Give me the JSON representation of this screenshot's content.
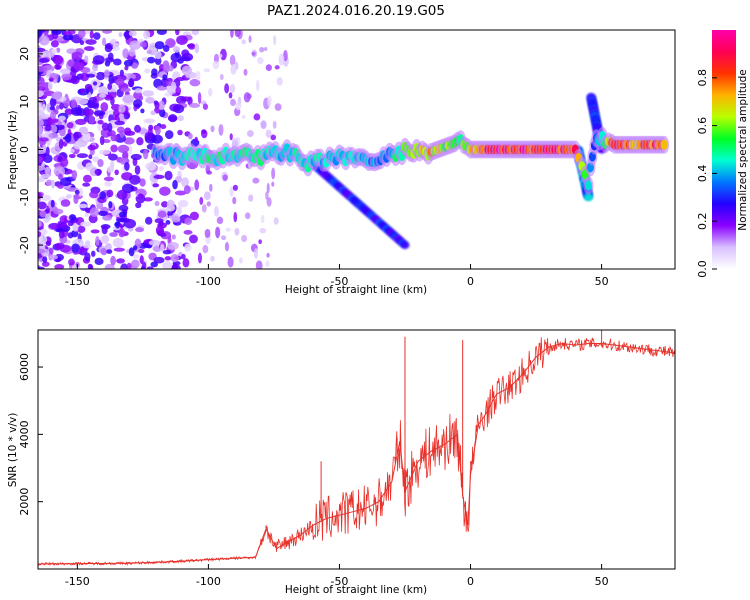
{
  "title": "PAZ1.2024.016.20.19.G05",
  "colors": {
    "snr_line": "#e8312a",
    "text": "#000000",
    "background": "#ffffff"
  },
  "chart_data": [
    {
      "type": "heatmap",
      "title": "PAZ1.2024.016.20.19.G05",
      "xlabel": "Height of straight line (km)",
      "ylabel": "Frequency (Hz)",
      "xlim": [
        -165,
        78
      ],
      "ylim": [
        -25,
        25
      ],
      "xticks": [
        -150,
        -100,
        -50,
        0,
        50
      ],
      "yticks": [
        -20,
        -10,
        0,
        10,
        20
      ],
      "colorbar": {
        "label": "Normalized spectral amplitude",
        "range": [
          0,
          1
        ],
        "ticks": [
          "0.0",
          "0.2",
          "0.4",
          "0.6",
          "0.8"
        ],
        "colormap": "gist_rainbow",
        "stops": [
          "#ffffff",
          "#d9c0ff",
          "#8a00ff",
          "#2400ff",
          "#0077ff",
          "#00ffd0",
          "#00ff22",
          "#b8ff00",
          "#ffb300",
          "#ff3300",
          "#ff0055",
          "#ff00aa"
        ]
      },
      "ridge": [
        {
          "x": -120,
          "y": -1.5,
          "a": 0.35
        },
        {
          "x": -110,
          "y": -1.5,
          "a": 0.45
        },
        {
          "x": -100,
          "y": -1.5,
          "a": 0.5
        },
        {
          "x": -90,
          "y": -1.5,
          "a": 0.5
        },
        {
          "x": -80,
          "y": -1.5,
          "a": 0.5
        },
        {
          "x": -70,
          "y": -0.5,
          "a": 0.45
        },
        {
          "x": -62,
          "y": -3.0,
          "a": 0.5
        },
        {
          "x": -55,
          "y": -2.5,
          "a": 0.45
        },
        {
          "x": -50,
          "y": -1.5,
          "a": 0.45
        },
        {
          "x": -44,
          "y": -1.5,
          "a": 0.45
        },
        {
          "x": -40,
          "y": -2.5,
          "a": 0.4
        },
        {
          "x": -32,
          "y": -1.5,
          "a": 0.4
        },
        {
          "x": -25,
          "y": -0.5,
          "a": 0.6
        },
        {
          "x": -15,
          "y": -0.5,
          "a": 0.75
        },
        {
          "x": -5,
          "y": 1.5,
          "a": 0.55
        },
        {
          "x": 0,
          "y": 0.0,
          "a": 0.7
        },
        {
          "x": 10,
          "y": 0.0,
          "a": 0.95
        },
        {
          "x": 20,
          "y": 0.0,
          "a": 0.95
        },
        {
          "x": 30,
          "y": 0.0,
          "a": 0.95
        },
        {
          "x": 40,
          "y": 0.0,
          "a": 0.9
        },
        {
          "x": 45,
          "y": -7.0,
          "a": 0.45
        },
        {
          "x": 48,
          "y": 3.0,
          "a": 0.35
        },
        {
          "x": 55,
          "y": 1.0,
          "a": 0.85
        },
        {
          "x": 65,
          "y": 1.0,
          "a": 0.85
        },
        {
          "x": 75,
          "y": 1.0,
          "a": 0.85
        }
      ],
      "streaks": [
        {
          "name": "descending-streak",
          "x": [
            -60,
            -25
          ],
          "y": [
            -3,
            -20
          ],
          "a": 0.35
        },
        {
          "name": "fade-out-streak",
          "x": [
            41,
            45
          ],
          "y": [
            0,
            -10
          ],
          "a": 0.45
        },
        {
          "name": "fade-in-streak",
          "x": [
            46,
            50
          ],
          "y": [
            11,
            0
          ],
          "a": 0.35
        }
      ]
    },
    {
      "type": "line",
      "xlabel": "Height of straight line (km)",
      "ylabel": "SNR (10 * v/v)",
      "xlim": [
        -165,
        78
      ],
      "ylim": [
        0,
        7100
      ],
      "xticks": [
        -150,
        -100,
        -50,
        0,
        50
      ],
      "yticks": [
        2000,
        4000,
        6000
      ],
      "series": [
        {
          "x": [
            -165,
            -150,
            -130,
            -120,
            -110,
            -100,
            -90,
            -82,
            -78,
            -74,
            -70,
            -65,
            -60,
            -55,
            -50,
            -45,
            -40,
            -35,
            -30,
            -27,
            -25,
            -20,
            -15,
            -10,
            -5,
            -3,
            -1,
            0,
            3,
            5,
            10,
            15,
            20,
            25,
            30,
            35,
            40,
            45,
            50,
            55,
            60,
            65,
            70,
            75,
            78
          ],
          "y": [
            150,
            160,
            170,
            200,
            230,
            280,
            320,
            350,
            1200,
            600,
            800,
            1000,
            1300,
            1500,
            1600,
            1700,
            1800,
            2000,
            2600,
            3800,
            2300,
            3200,
            3500,
            3700,
            4000,
            2200,
            1300,
            2800,
            4300,
            4500,
            5200,
            5400,
            5800,
            6300,
            6600,
            6700,
            6650,
            6700,
            6700,
            6650,
            6600,
            6550,
            6500,
            6450,
            6400
          ]
        }
      ],
      "spikes": [
        {
          "x": -78,
          "y": 1300
        },
        {
          "x": -57,
          "y": 3200
        },
        {
          "x": -28,
          "y": 3900
        },
        {
          "x": -25,
          "y": 6900
        },
        {
          "x": -3,
          "y": 6800
        },
        {
          "x": 50,
          "y": 7100
        }
      ]
    }
  ]
}
